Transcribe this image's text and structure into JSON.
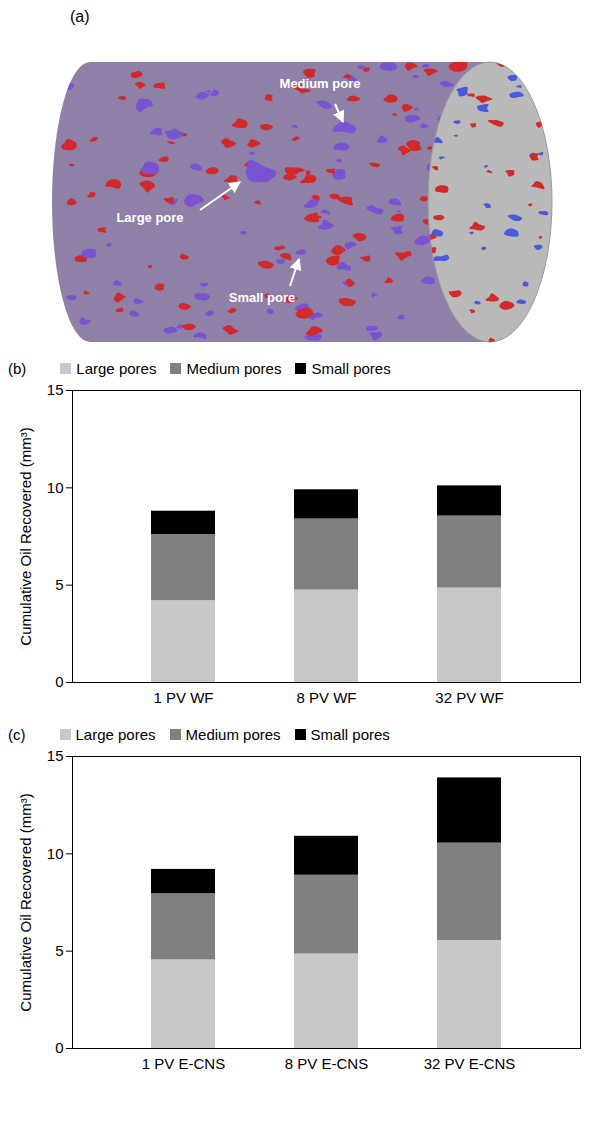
{
  "panel_a": {
    "label": "(a)",
    "annotations": [
      "Medium pore",
      "Large pore",
      "Small pore"
    ]
  },
  "chart_data": [
    {
      "type": "bar",
      "label": "(b)",
      "stacked": true,
      "legend": "top",
      "grid": false,
      "categories": [
        "1 PV WF",
        "8 PV WF",
        "32 PV WF"
      ],
      "series": [
        {
          "name": "Large pores",
          "color": "#c8c8c8",
          "values": [
            4.2,
            4.75,
            4.85
          ]
        },
        {
          "name": "Medium pores",
          "color": "#808080",
          "values": [
            3.4,
            3.65,
            3.7
          ]
        },
        {
          "name": "Small pores",
          "color": "#000000",
          "values": [
            1.2,
            1.5,
            1.55
          ]
        }
      ],
      "y_label": "Cumulative Oil Recovered (mm³)",
      "ylim": [
        0,
        15
      ],
      "yticks": [
        0,
        5,
        10,
        15
      ]
    },
    {
      "type": "bar",
      "label": "(c)",
      "stacked": true,
      "legend": "top",
      "grid": false,
      "categories": [
        "1 PV E-CNS",
        "8 PV E-CNS",
        "32 PV E-CNS"
      ],
      "series": [
        {
          "name": "Large pores",
          "color": "#c8c8c8",
          "values": [
            4.55,
            4.85,
            5.55
          ]
        },
        {
          "name": "Medium pores",
          "color": "#808080",
          "values": [
            3.4,
            4.05,
            5.0
          ]
        },
        {
          "name": "Small pores",
          "color": "#000000",
          "values": [
            1.25,
            2.0,
            3.35
          ]
        }
      ],
      "y_label": "Cumulative Oil Recovered (mm³)",
      "ylim": [
        0,
        15
      ],
      "yticks": [
        0,
        5,
        10,
        15
      ]
    }
  ]
}
